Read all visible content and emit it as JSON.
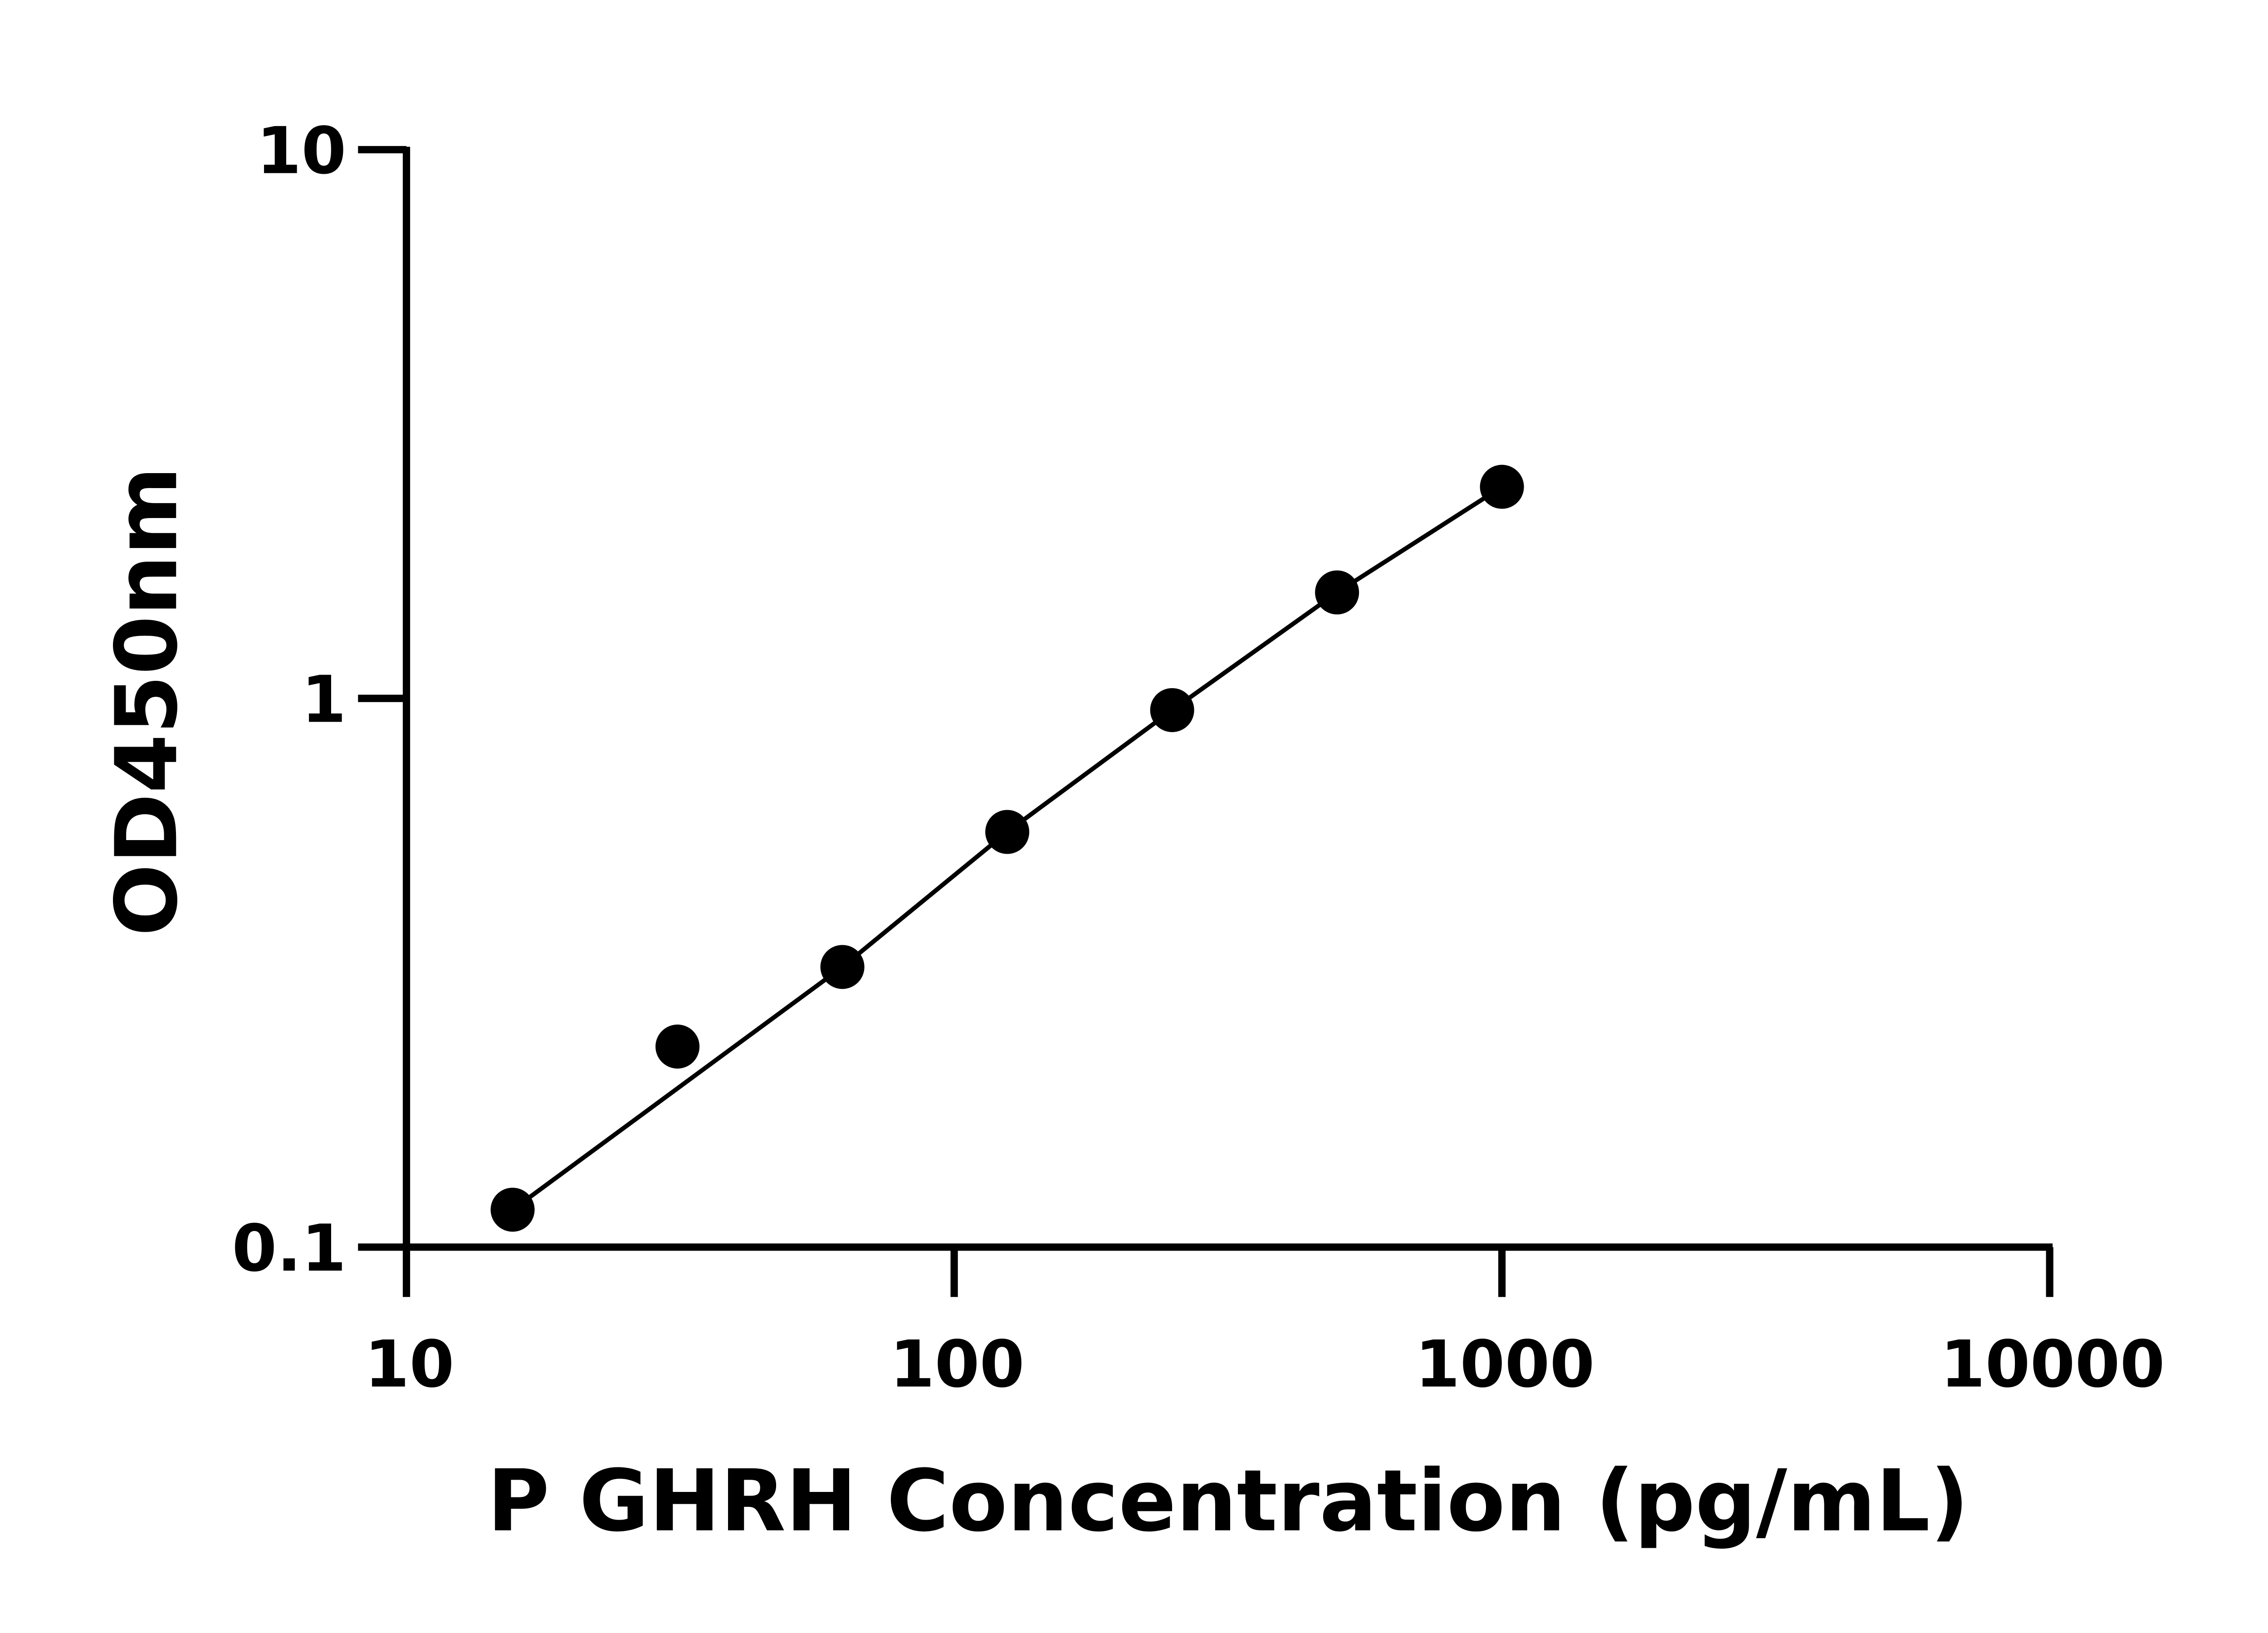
{
  "chart_data": {
    "type": "scatter",
    "title": "",
    "xlabel": "P GHRH Concentration (pg/mL)",
    "ylabel": "OD450nm",
    "x_scale": "log",
    "y_scale": "log",
    "xlim": [
      10,
      10000
    ],
    "ylim": [
      0.1,
      10
    ],
    "x_ticks": [
      "10",
      "100",
      "1000",
      "10000"
    ],
    "y_ticks": [
      "0.1",
      "1",
      "10"
    ],
    "grid": false,
    "legend": "none",
    "marker_color": "#000000",
    "line_color": "#000000",
    "points": [
      {
        "x": 15.625,
        "y": 0.117
      },
      {
        "x": 31.25,
        "y": 0.232
      },
      {
        "x": 62.5,
        "y": 0.324
      },
      {
        "x": 125,
        "y": 0.571
      },
      {
        "x": 250,
        "y": 0.952
      },
      {
        "x": 500,
        "y": 1.56
      },
      {
        "x": 1000,
        "y": 2.43
      }
    ]
  }
}
